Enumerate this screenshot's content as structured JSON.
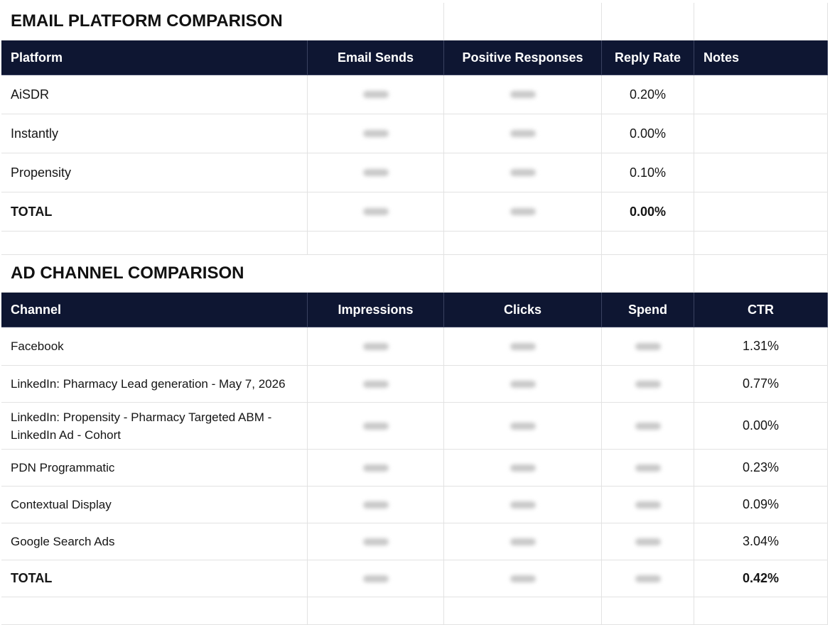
{
  "email_section": {
    "title": "EMAIL PLATFORM COMPARISON",
    "headers": [
      "Platform",
      "Email Sends",
      "Positive Responses",
      "Reply Rate",
      "Notes"
    ],
    "rows": [
      {
        "name": "AiSDR",
        "reply_rate": "0.20%"
      },
      {
        "name": "Instantly",
        "reply_rate": "0.00%"
      },
      {
        "name": "Propensity",
        "reply_rate": "0.10%"
      }
    ],
    "total": {
      "name": "TOTAL",
      "reply_rate": "0.00%"
    }
  },
  "ad_section": {
    "title": "AD CHANNEL COMPARISON",
    "headers": [
      "Channel",
      "Impressions",
      "Clicks",
      "Spend",
      "CTR"
    ],
    "rows": [
      {
        "name": "Facebook",
        "ctr": "1.31%"
      },
      {
        "name": "LinkedIn: Pharmacy Lead generation - May 7, 2026",
        "ctr": "0.77%"
      },
      {
        "name": "LinkedIn: Propensity - Pharmacy Targeted ABM - LinkedIn Ad - Cohort",
        "ctr": "0.00%"
      },
      {
        "name": "PDN Programmatic",
        "ctr": "0.23%"
      },
      {
        "name": "Contextual Display",
        "ctr": "0.09%"
      },
      {
        "name": "Google Search Ads",
        "ctr": "3.04%"
      }
    ],
    "total": {
      "name": "TOTAL",
      "ctr": "0.42%"
    }
  }
}
